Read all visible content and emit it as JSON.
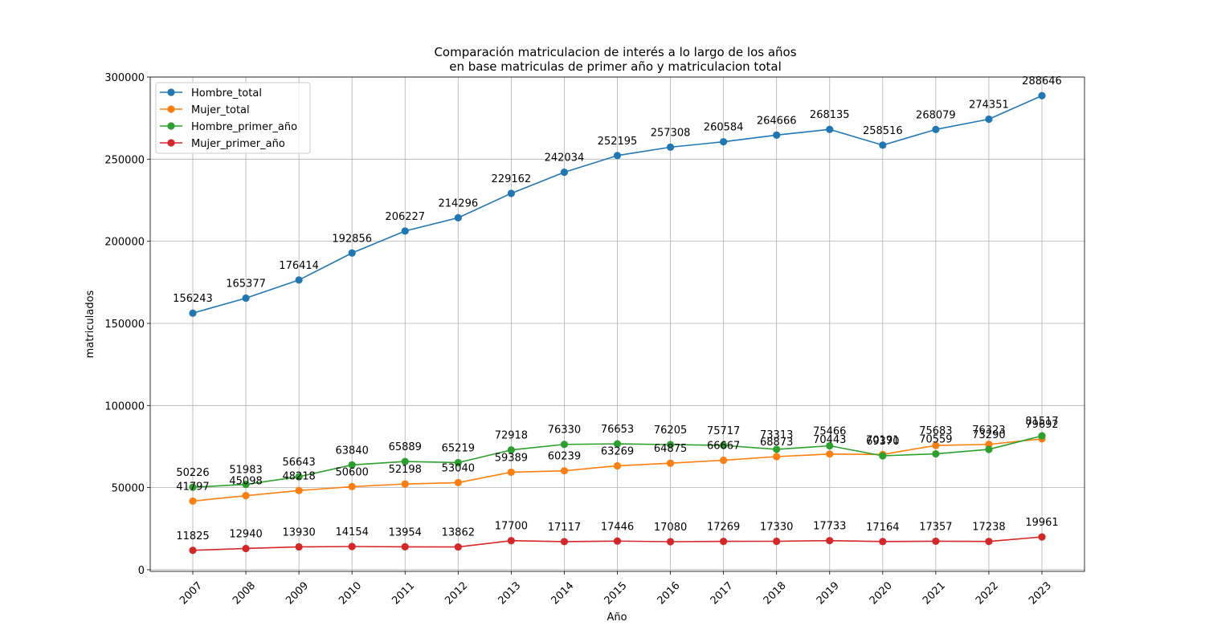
{
  "chart_data": {
    "type": "line",
    "title": "Comparación matriculacion de interés a lo largo de los años",
    "subtitle": "en base matriculas de primer año y matriculacion total",
    "xlabel": "Año",
    "ylabel": "matriculados",
    "x": [
      "2007",
      "2008",
      "2009",
      "2010",
      "2011",
      "2012",
      "2013",
      "2014",
      "2015",
      "2016",
      "2017",
      "2018",
      "2019",
      "2020",
      "2021",
      "2022",
      "2023"
    ],
    "ylim": [
      -1000,
      300000
    ],
    "yticks": [
      0,
      50000,
      100000,
      150000,
      200000,
      250000,
      300000
    ],
    "ytick_labels": [
      "0",
      "50000",
      "100000",
      "150000",
      "200000",
      "250000",
      "300000"
    ],
    "grid": true,
    "legend_position": "top-left",
    "series": [
      {
        "name": "Hombre_total",
        "color": "#1f77b4",
        "values": [
          156243,
          165377,
          176414,
          192856,
          206227,
          214296,
          229162,
          242034,
          252195,
          257308,
          260584,
          264666,
          268135,
          258516,
          268079,
          274351,
          288646
        ]
      },
      {
        "name": "Mujer_total",
        "color": "#ff7f0e",
        "values": [
          41797,
          45098,
          48218,
          50600,
          52198,
          53040,
          59389,
          60239,
          63269,
          64875,
          66667,
          68873,
          70443,
          70191,
          75683,
          76323,
          79692
        ]
      },
      {
        "name": "Hombre_primer_año",
        "color": "#2ca02c",
        "values": [
          50226,
          51983,
          56643,
          63840,
          65889,
          65219,
          72918,
          76330,
          76653,
          76205,
          75717,
          73313,
          75466,
          69370,
          70559,
          73290,
          81517
        ]
      },
      {
        "name": "Mujer_primer_año",
        "color": "#d62728",
        "values": [
          11825,
          12940,
          13930,
          14154,
          13954,
          13862,
          17700,
          17117,
          17446,
          17080,
          17269,
          17330,
          17733,
          17164,
          17357,
          17238,
          19961
        ]
      }
    ]
  }
}
